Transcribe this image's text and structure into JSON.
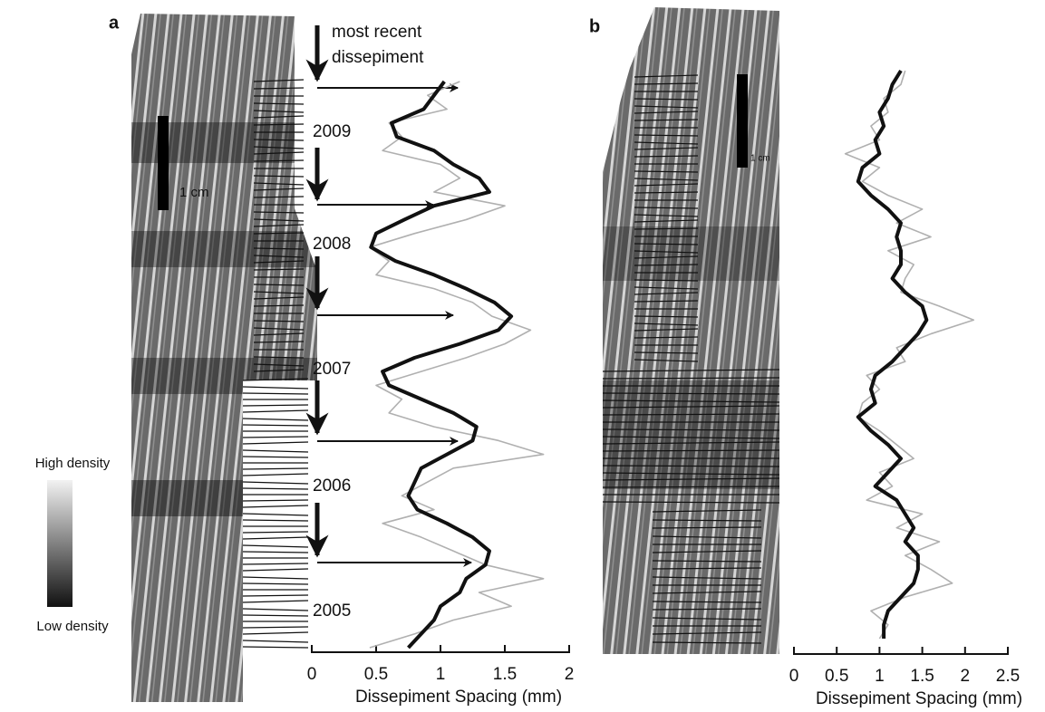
{
  "colorbar": {
    "high": "High density",
    "low": "Low density"
  },
  "chart_data": [
    {
      "type": "line",
      "panel_label": "a",
      "scale_bar": "1 cm",
      "annotations": [
        "most recent",
        "dissepiment",
        "2009",
        "2008",
        "2007",
        "2006",
        "2005"
      ],
      "xlabel": "Dissepiment Spacing (mm)",
      "xlim": [
        0,
        2
      ],
      "xticks": [
        0,
        0.5,
        1,
        1.5,
        2
      ],
      "series": [
        {
          "color": "#b0b0b0",
          "values": [
            1.15,
            0.9,
            1.05,
            0.6,
            0.7,
            0.55,
            1.0,
            1.15,
            0.95,
            1.5,
            1.2,
            0.8,
            0.45,
            0.6,
            0.5,
            0.95,
            1.25,
            1.4,
            1.7,
            1.5,
            1.2,
            0.85,
            0.5,
            0.7,
            0.6,
            0.95,
            1.45,
            1.8,
            1.1,
            0.9,
            0.7,
            0.95,
            0.55,
            0.85,
            1.1,
            1.35,
            1.8,
            1.3,
            1.55,
            1.1,
            0.8,
            0.45
          ]
        },
        {
          "color": "#111111",
          "values": [
            1.03,
            0.95,
            0.87,
            0.62,
            0.66,
            0.95,
            1.1,
            1.3,
            1.38,
            0.95,
            0.72,
            0.5,
            0.46,
            0.65,
            0.95,
            1.2,
            1.42,
            1.55,
            1.45,
            1.15,
            0.8,
            0.55,
            0.6,
            0.85,
            1.1,
            1.28,
            1.25,
            1.05,
            0.85,
            0.8,
            0.75,
            0.82,
            1.05,
            1.25,
            1.38,
            1.35,
            1.2,
            1.15,
            1.0,
            0.95,
            0.85,
            0.75
          ]
        }
      ]
    },
    {
      "type": "line",
      "panel_label": "b",
      "scale_bar": "1 cm",
      "xlabel": "Dissepiment Spacing (mm)",
      "xlim": [
        0,
        2.5
      ],
      "xticks": [
        0,
        0.5,
        1,
        1.5,
        2,
        2.5
      ],
      "series": [
        {
          "color": "#b0b0b0",
          "values": [
            1.3,
            1.25,
            1.05,
            1.1,
            0.9,
            1.0,
            0.6,
            1.0,
            0.8,
            1.1,
            1.5,
            1.2,
            1.6,
            1.1,
            1.4,
            1.3,
            1.25,
            1.7,
            2.1,
            1.6,
            1.2,
            1.3,
            0.85,
            1.0,
            0.8,
            0.75,
            1.0,
            1.2,
            1.4,
            1.0,
            1.15,
            0.85,
            1.5,
            1.2,
            1.7,
            1.3,
            1.6,
            1.85,
            1.3,
            0.9,
            1.1,
            1.0
          ]
        },
        {
          "color": "#111111",
          "values": [
            1.25,
            1.15,
            1.1,
            1.0,
            1.05,
            0.95,
            1.0,
            0.8,
            0.75,
            0.9,
            1.1,
            1.25,
            1.2,
            1.25,
            1.25,
            1.15,
            1.3,
            1.5,
            1.55,
            1.45,
            1.3,
            1.15,
            0.95,
            0.9,
            0.95,
            0.75,
            0.9,
            1.1,
            1.25,
            1.1,
            0.95,
            1.2,
            1.3,
            1.4,
            1.3,
            1.45,
            1.45,
            1.4,
            1.25,
            1.1,
            1.05,
            1.05
          ]
        }
      ]
    }
  ]
}
